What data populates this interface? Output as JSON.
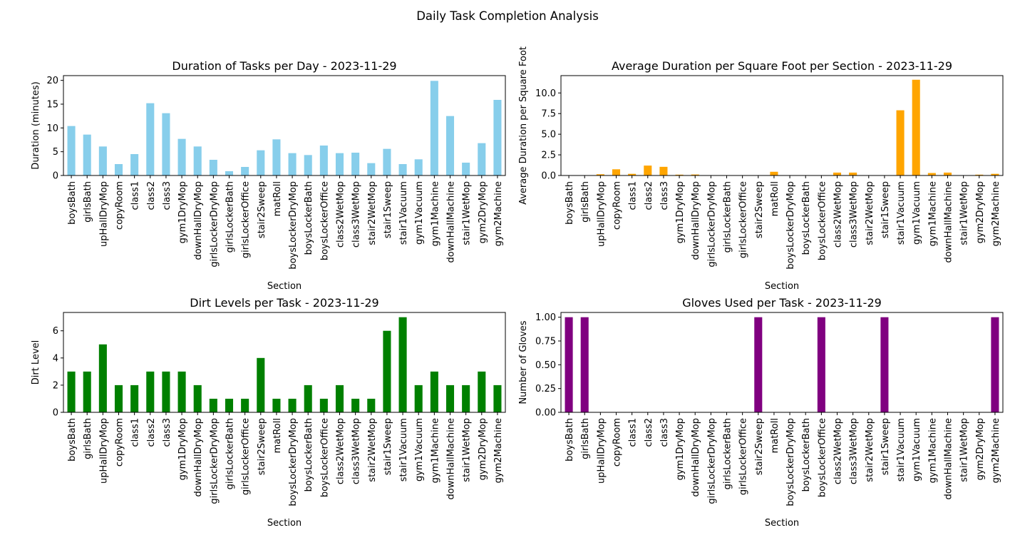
{
  "figure_title": "Daily Task Completion Analysis",
  "chart_data": [
    {
      "type": "bar",
      "title": "Duration of Tasks per Day - 2023-11-29",
      "xlabel": "Section",
      "ylabel": "Duration (minutes)",
      "ylim": [
        0,
        21
      ],
      "yticks": [
        "0",
        "5",
        "10",
        "15",
        "20"
      ],
      "color": "#87ceeb",
      "grid": false,
      "categories": [
        "boysBath",
        "girlsBath",
        "upHallDryMop",
        "copyRoom",
        "class1",
        "class2",
        "class3",
        "gym1DryMop",
        "downHallDryMop",
        "girlsLockerDryMop",
        "girlsLockerBath",
        "girlsLockerOffice",
        "stair2Sweep",
        "matRoll",
        "boysLockerDryMop",
        "boysLockerBath",
        "boysLockerOffice",
        "class2WetMop",
        "class3WetMop",
        "stair2WetMop",
        "stair1Sweep",
        "stair1Vacuum",
        "gym1Vacuum",
        "gym1Machine",
        "downHallMachine",
        "stair1WetMop",
        "gym2DryMop",
        "gym2Machine"
      ],
      "values": [
        10.4,
        8.6,
        6.1,
        2.4,
        4.5,
        15.2,
        13.1,
        7.7,
        6.1,
        3.3,
        0.9,
        1.8,
        5.3,
        7.6,
        4.7,
        4.3,
        6.3,
        4.7,
        4.8,
        2.6,
        5.6,
        2.4,
        3.4,
        19.9,
        12.5,
        2.7,
        6.8,
        15.9
      ]
    },
    {
      "type": "bar",
      "title": "Average Duration per Square Foot per Section - 2023-11-29",
      "xlabel": "Section",
      "ylabel": "Average Duration per Square Foot",
      "ylim": [
        0,
        12.1
      ],
      "yticks": [
        "0.0",
        "2.5",
        "5.0",
        "7.5",
        "10.0"
      ],
      "color": "#ffa500",
      "grid": false,
      "categories": [
        "boysBath",
        "girlsBath",
        "upHallDryMop",
        "copyRoom",
        "class1",
        "class2",
        "class3",
        "gym1DryMop",
        "downHallDryMop",
        "girlsLockerDryMop",
        "girlsLockerBath",
        "girlsLockerOffice",
        "stair2Sweep",
        "matRoll",
        "boysLockerDryMop",
        "boysLockerBath",
        "boysLockerOffice",
        "class2WetMop",
        "class3WetMop",
        "stair2WetMop",
        "stair1Sweep",
        "stair1Vacuum",
        "gym1Vacuum",
        "gym1Machine",
        "downHallMachine",
        "stair1WetMop",
        "gym2DryMop",
        "gym2Machine"
      ],
      "values": [
        0.02,
        0.02,
        0.15,
        0.75,
        0.2,
        1.2,
        1.05,
        0.1,
        0.12,
        0.02,
        0.02,
        0.02,
        0.02,
        0.45,
        0.02,
        0.02,
        0.02,
        0.35,
        0.35,
        0.02,
        0.02,
        7.9,
        11.6,
        0.3,
        0.35,
        0.02,
        0.1,
        0.2
      ]
    },
    {
      "type": "bar",
      "title": "Dirt Levels per Task - 2023-11-29",
      "xlabel": "Section",
      "ylabel": "Dirt Level",
      "ylim": [
        0,
        7.35
      ],
      "yticks": [
        "0",
        "2",
        "4",
        "6"
      ],
      "color": "#008000",
      "grid": false,
      "categories": [
        "boysBath",
        "girlsBath",
        "upHallDryMop",
        "copyRoom",
        "class1",
        "class2",
        "class3",
        "gym1DryMop",
        "downHallDryMop",
        "girlsLockerDryMop",
        "girlsLockerBath",
        "girlsLockerOffice",
        "stair2Sweep",
        "matRoll",
        "boysLockerDryMop",
        "boysLockerBath",
        "boysLockerOffice",
        "class2WetMop",
        "class3WetMop",
        "stair2WetMop",
        "stair1Sweep",
        "stair1Vacuum",
        "gym1Vacuum",
        "gym1Machine",
        "downHallMachine",
        "stair1WetMop",
        "gym2DryMop",
        "gym2Machine"
      ],
      "values": [
        3,
        3,
        5,
        2,
        2,
        3,
        3,
        3,
        2,
        1,
        1,
        1,
        4,
        1,
        1,
        2,
        1,
        2,
        1,
        1,
        6,
        7,
        2,
        3,
        2,
        2,
        3,
        2
      ]
    },
    {
      "type": "bar",
      "title": "Gloves Used per Task - 2023-11-29",
      "xlabel": "Section",
      "ylabel": "Number of Gloves",
      "ylim": [
        0,
        1.05
      ],
      "yticks": [
        "0.00",
        "0.25",
        "0.50",
        "0.75",
        "1.00"
      ],
      "color": "#800080",
      "grid": false,
      "categories": [
        "boysBath",
        "girlsBath",
        "upHallDryMop",
        "copyRoom",
        "class1",
        "class2",
        "class3",
        "gym1DryMop",
        "downHallDryMop",
        "girlsLockerDryMop",
        "girlsLockerBath",
        "girlsLockerOffice",
        "stair2Sweep",
        "matRoll",
        "boysLockerDryMop",
        "boysLockerBath",
        "boysLockerOffice",
        "class2WetMop",
        "class3WetMop",
        "stair2WetMop",
        "stair1Sweep",
        "stair1Vacuum",
        "gym1Vacuum",
        "gym1Machine",
        "downHallMachine",
        "stair1WetMop",
        "gym2DryMop",
        "gym2Machine"
      ],
      "values": [
        1,
        1,
        0,
        0,
        0,
        0,
        0,
        0,
        0,
        0,
        0,
        0,
        1,
        0,
        0,
        0,
        1,
        0,
        0,
        0,
        1,
        0,
        0,
        0,
        0,
        0,
        0,
        1
      ]
    }
  ]
}
